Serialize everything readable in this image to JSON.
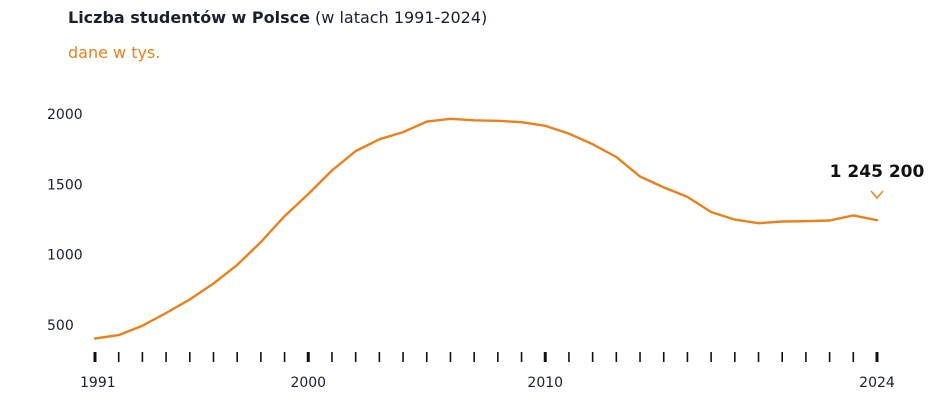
{
  "title": {
    "bold": "Liczba studentów w Polsce",
    "rest": " (w latach 1991-2024)"
  },
  "subtitle": "dane w tys.",
  "colors": {
    "line": "#e8821e",
    "text": "#1b1f2e",
    "tick": "#111111"
  },
  "chart_data": {
    "type": "line",
    "title": "Liczba studentów w Polsce (w latach 1991-2024)",
    "subtitle": "dane w tys.",
    "xlabel": "",
    "ylabel": "",
    "x": [
      1991,
      1992,
      1993,
      1994,
      1995,
      1996,
      1997,
      1998,
      1999,
      2000,
      2001,
      2002,
      2003,
      2004,
      2005,
      2006,
      2007,
      2008,
      2009,
      2010,
      2011,
      2012,
      2013,
      2014,
      2015,
      2016,
      2017,
      2018,
      2019,
      2020,
      2021,
      2022,
      2023,
      2024
    ],
    "series": [
      {
        "values": [
          404,
          428,
          495,
          585,
          682,
          795,
          927,
          1090,
          1274,
          1431,
          1599,
          1737,
          1820,
          1871,
          1946,
          1966,
          1955,
          1952,
          1942,
          1916,
          1861,
          1785,
          1694,
          1556,
          1478,
          1411,
          1303,
          1249,
          1224,
          1236,
          1238,
          1243,
          1279,
          1245.2
        ]
      }
    ],
    "ylim": [
      290,
      2120
    ],
    "xlim": [
      1991,
      2024
    ],
    "y_ticks": [
      "500",
      "1000",
      "1500",
      "2000"
    ],
    "x_tick_labels": [
      "1991",
      "2000",
      "2010",
      "2024"
    ],
    "grid": false,
    "callout": {
      "year": 2024,
      "label": "1 245 200"
    }
  }
}
